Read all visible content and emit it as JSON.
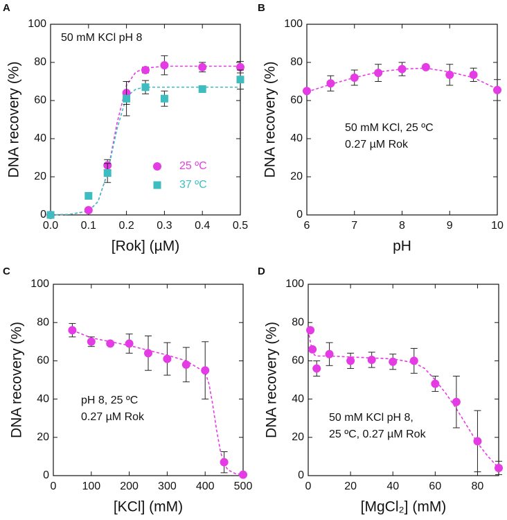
{
  "chart_data": [
    {
      "type": "scatter",
      "label": "A",
      "xlabel": "[Rok] (µM)",
      "ylabel": "DNA recovery (%)",
      "annotation": [
        "50 mM KCl pH 8"
      ],
      "xlim": [
        0,
        0.5
      ],
      "ylim": [
        0,
        100
      ],
      "xticks": [
        {
          "value": 0,
          "label": "0.0"
        },
        0.1,
        0.2,
        0.3,
        0.4,
        0.5
      ],
      "yticks": [
        0,
        20,
        40,
        60,
        80,
        100
      ],
      "legend": "lower right",
      "series": [
        {
          "name": "25 ºC",
          "color": "#e53be5",
          "marker": "circle",
          "x": [
            0,
            0.1,
            0.15,
            0.2,
            0.25,
            0.3,
            0.4,
            0.5
          ],
          "values": [
            0,
            2.5,
            26,
            64,
            76,
            78.5,
            77.5,
            77.5
          ],
          "errors": [
            0,
            1,
            3,
            6,
            1.5,
            5,
            2.5,
            3
          ],
          "fit_x": [
            0,
            0.05,
            0.1,
            0.125,
            0.15,
            0.175,
            0.2,
            0.225,
            0.25,
            0.3,
            0.4,
            0.5
          ],
          "fit_values": [
            0,
            0.3,
            2,
            7,
            22,
            48,
            68,
            75,
            77,
            78,
            78,
            78
          ]
        },
        {
          "name": "37 ºC",
          "color": "#3dbdbf",
          "marker": "square",
          "x": [
            0,
            0.1,
            0.15,
            0.2,
            0.25,
            0.3,
            0.4,
            0.5
          ],
          "values": [
            0,
            10,
            22,
            61,
            67,
            61,
            66,
            71
          ],
          "errors": [
            0,
            0,
            5,
            9,
            3.5,
            4,
            0,
            5
          ],
          "fit_x": [
            0,
            0.05,
            0.1,
            0.125,
            0.15,
            0.175,
            0.2,
            0.225,
            0.25,
            0.3,
            0.4,
            0.5
          ],
          "fit_values": [
            0,
            0.3,
            2,
            7,
            22,
            45,
            62,
            66,
            67,
            67,
            67,
            67
          ]
        }
      ]
    },
    {
      "type": "scatter",
      "label": "B",
      "xlabel": "pH",
      "ylabel": "DNA recovery (%)",
      "annotation": [
        "50 mM KCl, 25 ºC",
        "0.27 µM Rok"
      ],
      "xlim": [
        6,
        10
      ],
      "ylim": [
        0,
        100
      ],
      "xticks": [
        6,
        7,
        8,
        9,
        10
      ],
      "yticks": [
        0,
        20,
        40,
        60,
        80,
        100
      ],
      "series": [
        {
          "color": "#e53be5",
          "marker": "circle",
          "x": [
            6,
            6.5,
            7,
            7.5,
            8,
            8.5,
            9,
            9.5,
            10
          ],
          "values": [
            65,
            69,
            72,
            74.5,
            76.5,
            77.5,
            73.5,
            73.5,
            65.5
          ],
          "errors": [
            0,
            4,
            4,
            4.5,
            3.5,
            0,
            5.5,
            3.5,
            5.5
          ],
          "fit_x": [
            6,
            6.5,
            7,
            7.5,
            8,
            8.5,
            9,
            9.5,
            10
          ],
          "fit_values": [
            64.5,
            68.5,
            72,
            75,
            76.5,
            77,
            75,
            72,
            66
          ]
        }
      ]
    },
    {
      "type": "scatter",
      "label": "C",
      "xlabel": "[KCl] (mM)",
      "ylabel": "DNA recovery (%)",
      "annotation": [
        "pH 8, 25 ºC",
        "0.27 µM Rok"
      ],
      "xlim": [
        0,
        500
      ],
      "ylim": [
        0,
        100
      ],
      "xticks": [
        0,
        100,
        200,
        300,
        400,
        500
      ],
      "yticks": [
        0,
        20,
        40,
        60,
        80,
        100
      ],
      "series": [
        {
          "color": "#e53be5",
          "marker": "circle",
          "x": [
            50,
            100,
            150,
            200,
            250,
            300,
            350,
            400,
            450,
            500
          ],
          "values": [
            76,
            70,
            69,
            69,
            64,
            61,
            58,
            55,
            7,
            0.5
          ],
          "errors": [
            3.5,
            2.5,
            0,
            5,
            9,
            8.5,
            9,
            15,
            5.5,
            0
          ],
          "fit_x": [
            50,
            100,
            200,
            300,
            350,
            400,
            410,
            420,
            430,
            440,
            450,
            460,
            480,
            500
          ],
          "fit_values": [
            76,
            72,
            68,
            63,
            60,
            54,
            48,
            37,
            24,
            13,
            6,
            3,
            1,
            0.5
          ]
        }
      ]
    },
    {
      "type": "scatter",
      "label": "D",
      "xlabel": "[MgCl₂] (mM)",
      "ylabel": "DNA recovery (%)",
      "annotation": [
        "50 mM KCl pH 8,",
        "25 ºC, 0.27 µM Rok"
      ],
      "xlim": [
        0,
        90
      ],
      "ylim": [
        0,
        100
      ],
      "xticks": [
        0,
        20,
        40,
        60,
        80
      ],
      "yticks": [
        0,
        20,
        40,
        60,
        80,
        100
      ],
      "series": [
        {
          "color": "#e53be5",
          "marker": "circle",
          "x": [
            1,
            2,
            4,
            10,
            20,
            30,
            40,
            50,
            60,
            70,
            80,
            90
          ],
          "values": [
            76,
            66,
            56,
            63.5,
            60,
            60.5,
            59.5,
            60,
            48,
            38.5,
            18,
            4
          ],
          "errors": [
            0,
            0,
            4,
            6,
            4,
            4,
            4,
            6.5,
            4,
            13.5,
            16,
            3.5
          ],
          "fit_x": [
            0,
            1,
            2,
            3,
            4,
            6,
            10,
            20,
            40,
            50,
            55,
            60,
            65,
            70,
            75,
            80,
            85,
            90
          ],
          "fit_values": [
            76,
            70,
            65,
            63,
            62.5,
            62.5,
            62.5,
            62,
            61,
            59,
            56,
            50,
            43,
            35,
            26,
            17,
            10,
            4
          ]
        }
      ]
    }
  ]
}
